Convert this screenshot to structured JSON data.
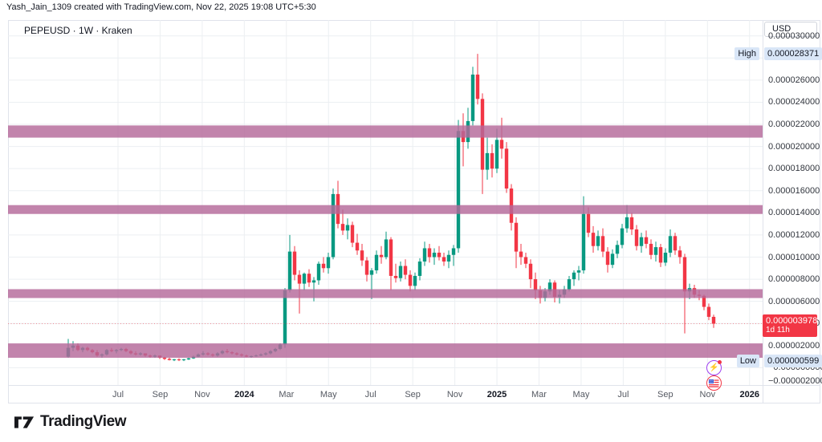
{
  "meta": {
    "attribution": "Yash_Jain_1309 created with TradingView.com, Nov 22, 2025 19:08 UTC+5:30",
    "symbol_line": "PEPEUSD · 1W · Kraken",
    "currency_button": "USD",
    "logo_text": "TradingView"
  },
  "colors": {
    "up": "#089981",
    "down": "#f23645",
    "zone": "#b5699a",
    "grid": "#eceff2",
    "frame": "#e0e3eb",
    "badge_blue_bg": "#d9e6f7",
    "last_badge_bg": "#f23645",
    "text": "#131722"
  },
  "badges": {
    "high": {
      "label": "High",
      "value": "0.000028371",
      "price": 28.371
    },
    "low": {
      "label": "Low",
      "value": "0.000000599",
      "price": 0.599
    },
    "last": {
      "value": "0.000003978",
      "countdown": "1d 11h",
      "price": 3.978
    }
  },
  "price_axis": {
    "ticks": [
      {
        "p": 30,
        "label": "0.000030000"
      },
      {
        "p": 28,
        "label": "0.000028000"
      },
      {
        "p": 26,
        "label": "0.000026000"
      },
      {
        "p": 24,
        "label": "0.000024000"
      },
      {
        "p": 22,
        "label": "0.000022000"
      },
      {
        "p": 20,
        "label": "0.000020000"
      },
      {
        "p": 18,
        "label": "0.000018000"
      },
      {
        "p": 16,
        "label": "0.000016000"
      },
      {
        "p": 14,
        "label": "0.000014000"
      },
      {
        "p": 12,
        "label": "0.000012000"
      },
      {
        "p": 10,
        "label": "0.000010000"
      },
      {
        "p": 8,
        "label": "0.000008000"
      },
      {
        "p": 6,
        "label": "0.000006000"
      },
      {
        "p": 4,
        "label": "0.000004000"
      },
      {
        "p": 2,
        "label": "0.000002000"
      },
      {
        "p": 0,
        "label": "−0.000000000"
      },
      {
        "p": -2,
        "label": "−0.000002000"
      }
    ]
  },
  "time_axis": {
    "ticks": [
      {
        "label": "Jul",
        "year": false
      },
      {
        "label": "Sep",
        "year": false
      },
      {
        "label": "Nov",
        "year": false
      },
      {
        "label": "2024",
        "year": true
      },
      {
        "label": "Mar",
        "year": false
      },
      {
        "label": "May",
        "year": false
      },
      {
        "label": "Jul",
        "year": false
      },
      {
        "label": "Sep",
        "year": false
      },
      {
        "label": "Nov",
        "year": false
      },
      {
        "label": "2025",
        "year": true
      },
      {
        "label": "Mar",
        "year": false
      },
      {
        "label": "May",
        "year": false
      },
      {
        "label": "Jul",
        "year": false
      },
      {
        "label": "Sep",
        "year": false
      },
      {
        "label": "Nov",
        "year": false
      },
      {
        "label": "2026",
        "year": true
      }
    ]
  },
  "events": [
    {
      "icon": "lightning-event-icon",
      "glyph": "⚡",
      "color": "#9c3df0",
      "notification_dot": true
    },
    {
      "icon": "us-flag-economic-event-icon",
      "color": "#f23645"
    }
  ],
  "chart_data": {
    "type": "candlestick",
    "symbol": "PEPEUSD",
    "interval": "1W",
    "exchange": "Kraken",
    "currency": "USD",
    "price_unit": "micro-USD (multiply by 1e-6 for USD)",
    "high": 28.371,
    "low": 0.599,
    "last": 3.978,
    "countdown": "1d 11h",
    "ylim": [
      -2.5,
      31.5
    ],
    "grid": true,
    "supply_demand_zones": [
      {
        "bottom": 20.8,
        "top": 21.9
      },
      {
        "bottom": 13.9,
        "top": 14.7
      },
      {
        "bottom": 6.3,
        "top": 7.1
      },
      {
        "bottom": 0.9,
        "top": 2.2
      }
    ],
    "candles": [
      [
        "2023-04-24",
        1.0,
        2.6,
        0.9,
        1.8
      ],
      [
        "2023-05-01",
        1.8,
        2.4,
        1.5,
        2.0
      ],
      [
        "2023-05-08",
        2.0,
        2.2,
        1.5,
        1.6
      ],
      [
        "2023-05-15",
        1.6,
        1.9,
        1.4,
        1.8
      ],
      [
        "2023-05-22",
        1.8,
        1.9,
        1.5,
        1.6
      ],
      [
        "2023-05-29",
        1.6,
        1.7,
        1.3,
        1.4
      ],
      [
        "2023-06-05",
        1.4,
        1.6,
        1.0,
        1.1
      ],
      [
        "2023-06-12",
        1.1,
        1.3,
        0.9,
        1.2
      ],
      [
        "2023-06-19",
        1.2,
        1.7,
        1.1,
        1.6
      ],
      [
        "2023-06-26",
        1.6,
        1.8,
        1.4,
        1.5
      ],
      [
        "2023-07-03",
        1.5,
        1.7,
        1.3,
        1.6
      ],
      [
        "2023-07-10",
        1.6,
        1.8,
        1.5,
        1.7
      ],
      [
        "2023-07-17",
        1.7,
        1.8,
        1.4,
        1.5
      ],
      [
        "2023-07-24",
        1.5,
        1.6,
        1.2,
        1.3
      ],
      [
        "2023-07-31",
        1.3,
        1.5,
        1.1,
        1.2
      ],
      [
        "2023-08-07",
        1.2,
        1.4,
        1.1,
        1.3
      ],
      [
        "2023-08-14",
        1.3,
        1.3,
        1.0,
        1.1
      ],
      [
        "2023-08-21",
        1.1,
        1.2,
        0.9,
        1.0
      ],
      [
        "2023-08-28",
        1.0,
        1.2,
        0.9,
        1.1
      ],
      [
        "2023-09-04",
        1.1,
        1.1,
        0.8,
        0.9
      ],
      [
        "2023-09-11",
        0.9,
        1.0,
        0.7,
        0.8
      ],
      [
        "2023-09-18",
        0.8,
        0.9,
        0.65,
        0.7
      ],
      [
        "2023-09-25",
        0.7,
        0.8,
        0.6,
        0.75
      ],
      [
        "2023-10-02",
        0.75,
        0.85,
        0.599,
        0.7
      ],
      [
        "2023-10-09",
        0.7,
        0.8,
        0.6,
        0.75
      ],
      [
        "2023-10-16",
        0.75,
        0.9,
        0.7,
        0.85
      ],
      [
        "2023-10-23",
        0.85,
        1.1,
        0.8,
        1.0
      ],
      [
        "2023-10-30",
        1.0,
        1.3,
        0.95,
        1.2
      ],
      [
        "2023-11-06",
        1.2,
        1.5,
        1.1,
        1.3
      ],
      [
        "2023-11-13",
        1.3,
        1.4,
        1.1,
        1.2
      ],
      [
        "2023-11-20",
        1.2,
        1.3,
        1.0,
        1.1
      ],
      [
        "2023-11-27",
        1.1,
        1.4,
        1.0,
        1.3
      ],
      [
        "2023-12-04",
        1.3,
        1.6,
        1.2,
        1.5
      ],
      [
        "2023-12-11",
        1.5,
        1.7,
        1.3,
        1.4
      ],
      [
        "2023-12-18",
        1.4,
        1.5,
        1.2,
        1.3
      ],
      [
        "2023-12-25",
        1.3,
        1.4,
        1.1,
        1.2
      ],
      [
        "2024-01-01",
        1.2,
        1.3,
        1.0,
        1.1
      ],
      [
        "2024-01-08",
        1.1,
        1.2,
        0.95,
        1.0
      ],
      [
        "2024-01-15",
        1.0,
        1.1,
        0.9,
        1.05
      ],
      [
        "2024-01-22",
        1.05,
        1.2,
        1.0,
        1.1
      ],
      [
        "2024-01-29",
        1.1,
        1.3,
        1.05,
        1.2
      ],
      [
        "2024-02-05",
        1.2,
        1.4,
        1.1,
        1.3
      ],
      [
        "2024-02-12",
        1.3,
        1.6,
        1.2,
        1.5
      ],
      [
        "2024-02-19",
        1.5,
        1.8,
        1.4,
        1.7
      ],
      [
        "2024-02-26",
        1.7,
        2.2,
        1.6,
        2.1
      ],
      [
        "2024-03-04",
        2.1,
        7.2,
        1.8,
        7.0
      ],
      [
        "2024-03-11",
        7.0,
        12.0,
        6.8,
        10.5
      ],
      [
        "2024-03-18",
        10.5,
        11.0,
        7.9,
        8.4
      ],
      [
        "2024-03-25",
        8.4,
        8.8,
        4.9,
        7.6
      ],
      [
        "2024-04-01",
        7.6,
        8.6,
        7.0,
        8.5
      ],
      [
        "2024-04-08",
        8.5,
        8.9,
        7.3,
        7.7
      ],
      [
        "2024-04-15",
        7.7,
        8.2,
        6.0,
        7.9
      ],
      [
        "2024-04-22",
        7.9,
        9.6,
        7.5,
        9.4
      ],
      [
        "2024-04-29",
        9.4,
        10.0,
        8.6,
        9.0
      ],
      [
        "2024-05-06",
        9.0,
        10.4,
        8.5,
        10.0
      ],
      [
        "2024-05-13",
        10.0,
        16.2,
        9.8,
        15.7
      ],
      [
        "2024-05-20",
        15.7,
        16.9,
        12.6,
        13.0
      ],
      [
        "2024-05-27",
        13.0,
        14.3,
        12.0,
        12.4
      ],
      [
        "2024-06-03",
        12.4,
        13.5,
        11.6,
        12.9
      ],
      [
        "2024-06-10",
        12.9,
        13.2,
        10.9,
        11.3
      ],
      [
        "2024-06-17",
        11.3,
        12.1,
        10.2,
        10.6
      ],
      [
        "2024-06-24",
        10.6,
        11.2,
        9.2,
        9.7
      ],
      [
        "2024-07-01",
        9.7,
        10.0,
        7.8,
        8.4
      ],
      [
        "2024-07-08",
        8.4,
        9.0,
        6.2,
        8.8
      ],
      [
        "2024-07-15",
        8.8,
        10.6,
        8.5,
        10.2
      ],
      [
        "2024-07-22",
        10.2,
        11.0,
        9.4,
        10.0
      ],
      [
        "2024-07-29",
        10.0,
        12.3,
        9.8,
        11.6
      ],
      [
        "2024-08-05",
        11.6,
        11.8,
        7.0,
        8.3
      ],
      [
        "2024-08-12",
        8.3,
        9.4,
        7.7,
        8.1
      ],
      [
        "2024-08-19",
        8.1,
        9.6,
        7.8,
        9.2
      ],
      [
        "2024-08-26",
        9.2,
        9.8,
        8.0,
        8.4
      ],
      [
        "2024-09-02",
        8.4,
        8.8,
        6.9,
        7.4
      ],
      [
        "2024-09-09",
        7.4,
        8.6,
        7.0,
        8.3
      ],
      [
        "2024-09-16",
        8.3,
        9.9,
        7.9,
        9.6
      ],
      [
        "2024-09-23",
        9.6,
        11.4,
        9.2,
        10.8
      ],
      [
        "2024-09-30",
        10.8,
        11.2,
        9.5,
        10.0
      ],
      [
        "2024-10-07",
        10.0,
        10.8,
        9.3,
        10.4
      ],
      [
        "2024-10-14",
        10.4,
        11.0,
        9.7,
        10.0
      ],
      [
        "2024-10-21",
        10.0,
        10.4,
        9.2,
        9.6
      ],
      [
        "2024-10-28",
        9.6,
        10.6,
        9.0,
        10.2
      ],
      [
        "2024-11-04",
        10.2,
        11.1,
        9.2,
        10.8
      ],
      [
        "2024-11-11",
        10.8,
        22.4,
        10.4,
        21.4
      ],
      [
        "2024-11-18",
        21.4,
        23.0,
        18.2,
        20.4
      ],
      [
        "2024-11-25",
        20.4,
        23.5,
        19.8,
        22.3
      ],
      [
        "2024-12-02",
        22.3,
        27.2,
        21.9,
        26.5
      ],
      [
        "2024-12-09",
        26.5,
        28.371,
        23.8,
        24.3
      ],
      [
        "2024-12-16",
        24.3,
        24.8,
        15.7,
        17.9
      ],
      [
        "2024-12-23",
        17.9,
        20.8,
        17.0,
        19.4
      ],
      [
        "2024-12-30",
        19.4,
        20.2,
        17.2,
        18.0
      ],
      [
        "2025-01-06",
        18.0,
        21.6,
        17.6,
        20.6
      ],
      [
        "2025-01-13",
        20.6,
        22.6,
        18.9,
        19.8
      ],
      [
        "2025-01-20",
        19.8,
        20.4,
        15.8,
        16.2
      ],
      [
        "2025-01-27",
        16.2,
        16.6,
        12.4,
        13.1
      ],
      [
        "2025-02-03",
        13.1,
        13.6,
        9.0,
        10.5
      ],
      [
        "2025-02-10",
        10.5,
        11.2,
        9.3,
        10.0
      ],
      [
        "2025-02-17",
        10.0,
        10.4,
        9.0,
        9.4
      ],
      [
        "2025-02-24",
        9.4,
        9.8,
        7.2,
        8.0
      ],
      [
        "2025-03-03",
        8.0,
        8.6,
        6.2,
        7.0
      ],
      [
        "2025-03-10",
        7.0,
        7.4,
        5.8,
        6.3
      ],
      [
        "2025-03-17",
        6.3,
        7.2,
        6.0,
        6.9
      ],
      [
        "2025-03-24",
        6.9,
        8.0,
        6.6,
        7.7
      ],
      [
        "2025-03-31",
        7.7,
        7.9,
        5.9,
        6.4
      ],
      [
        "2025-04-07",
        6.4,
        7.0,
        5.8,
        6.6
      ],
      [
        "2025-04-14",
        6.6,
        7.4,
        6.3,
        7.1
      ],
      [
        "2025-04-21",
        7.1,
        8.3,
        6.9,
        8.0
      ],
      [
        "2025-04-28",
        8.0,
        8.8,
        7.4,
        8.6
      ],
      [
        "2025-05-05",
        8.6,
        9.2,
        7.9,
        8.8
      ],
      [
        "2025-05-12",
        8.8,
        15.5,
        8.5,
        13.9
      ],
      [
        "2025-05-19",
        13.9,
        14.5,
        11.8,
        12.2
      ],
      [
        "2025-05-26",
        12.2,
        12.8,
        10.4,
        11.0
      ],
      [
        "2025-06-02",
        11.0,
        12.4,
        10.6,
        11.9
      ],
      [
        "2025-06-09",
        11.9,
        12.6,
        10.0,
        10.5
      ],
      [
        "2025-06-16",
        10.5,
        10.9,
        8.6,
        9.3
      ],
      [
        "2025-06-23",
        9.3,
        10.7,
        9.0,
        10.3
      ],
      [
        "2025-06-30",
        10.3,
        11.5,
        9.9,
        11.1
      ],
      [
        "2025-07-07",
        11.1,
        13.0,
        10.8,
        12.6
      ],
      [
        "2025-07-14",
        12.6,
        14.7,
        12.2,
        13.6
      ],
      [
        "2025-07-21",
        13.6,
        14.0,
        12.0,
        12.5
      ],
      [
        "2025-07-28",
        12.5,
        12.9,
        10.6,
        11.0
      ],
      [
        "2025-08-04",
        11.0,
        12.2,
        10.4,
        11.8
      ],
      [
        "2025-08-11",
        11.8,
        12.4,
        10.8,
        11.2
      ],
      [
        "2025-08-18",
        11.2,
        11.6,
        9.8,
        10.2
      ],
      [
        "2025-08-25",
        10.2,
        11.4,
        9.6,
        10.9
      ],
      [
        "2025-09-01",
        10.9,
        11.2,
        9.1,
        9.5
      ],
      [
        "2025-09-08",
        9.5,
        10.8,
        9.2,
        10.4
      ],
      [
        "2025-09-15",
        10.4,
        12.5,
        10.0,
        11.9
      ],
      [
        "2025-09-22",
        11.9,
        12.2,
        10.2,
        10.6
      ],
      [
        "2025-09-29",
        10.6,
        11.0,
        9.4,
        10.0
      ],
      [
        "2025-10-06",
        10.0,
        10.3,
        3.1,
        6.9
      ],
      [
        "2025-10-13",
        6.9,
        7.6,
        6.2,
        7.2
      ],
      [
        "2025-10-20",
        7.2,
        7.5,
        6.3,
        6.6
      ],
      [
        "2025-10-27",
        6.6,
        7.0,
        6.1,
        6.5
      ],
      [
        "2025-11-03",
        6.5,
        6.6,
        5.2,
        5.5
      ],
      [
        "2025-11-10",
        5.5,
        5.8,
        4.3,
        4.6
      ],
      [
        "2025-11-17",
        4.6,
        4.8,
        3.6,
        3.978
      ]
    ]
  }
}
